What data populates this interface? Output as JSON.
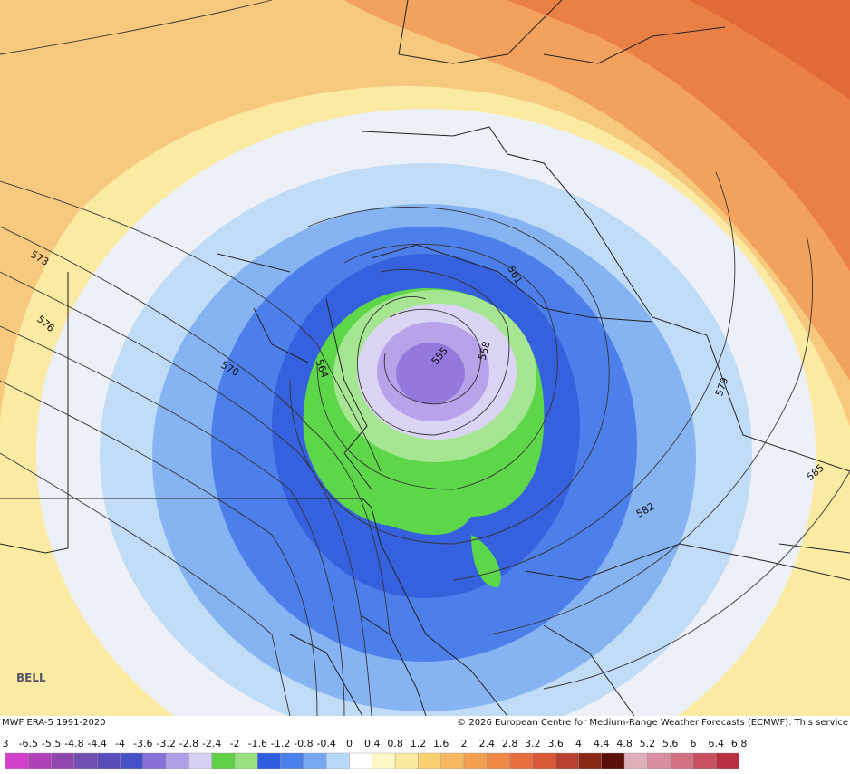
{
  "contour_labels": [
    "573",
    "576",
    "570",
    "564",
    "555",
    "558",
    "561",
    "579",
    "582",
    "585"
  ],
  "footer": {
    "left": "MWF ERA-5 1991-2020",
    "right": "© 2026 European Centre for Medium-Range Weather Forecasts (ECMWF). This service",
    "logo": "BELL"
  },
  "legend": {
    "labels": [
      "3",
      "-6.5",
      "-5.5",
      "-4.8",
      "-4.4",
      "-4",
      "-3.6",
      "-3.2",
      "-2.8",
      "-2.4",
      "-2",
      "-1.6",
      "-1.2",
      "-0.8",
      "-0.4",
      "0",
      "0.4",
      "0.8",
      "1.2",
      "1.6",
      "2",
      "2.4",
      "2.8",
      "3.2",
      "3.6",
      "4",
      "4.4",
      "4.8",
      "5.2",
      "5.6",
      "6",
      "6.4",
      "6.8"
    ],
    "colors": [
      "#d040c8",
      "#b040b8",
      "#9048b0",
      "#7050b0",
      "#5a4cb8",
      "#4850c8",
      "#8870d8",
      "#b0a0e8",
      "#d8d0f4",
      "#60d048",
      "#98e080",
      "#2f5fe0",
      "#4a80ec",
      "#78a8f2",
      "#b8d8f8",
      "#ffffff",
      "#fff6c8",
      "#fbe9a0",
      "#f8d070",
      "#f6b860",
      "#f2a050",
      "#ee8844",
      "#e87040",
      "#d85838",
      "#b84030",
      "#8a2818",
      "#5a1008",
      "#e0b0b8",
      "#d890a0",
      "#d07080",
      "#c85060",
      "#b83040"
    ]
  }
}
